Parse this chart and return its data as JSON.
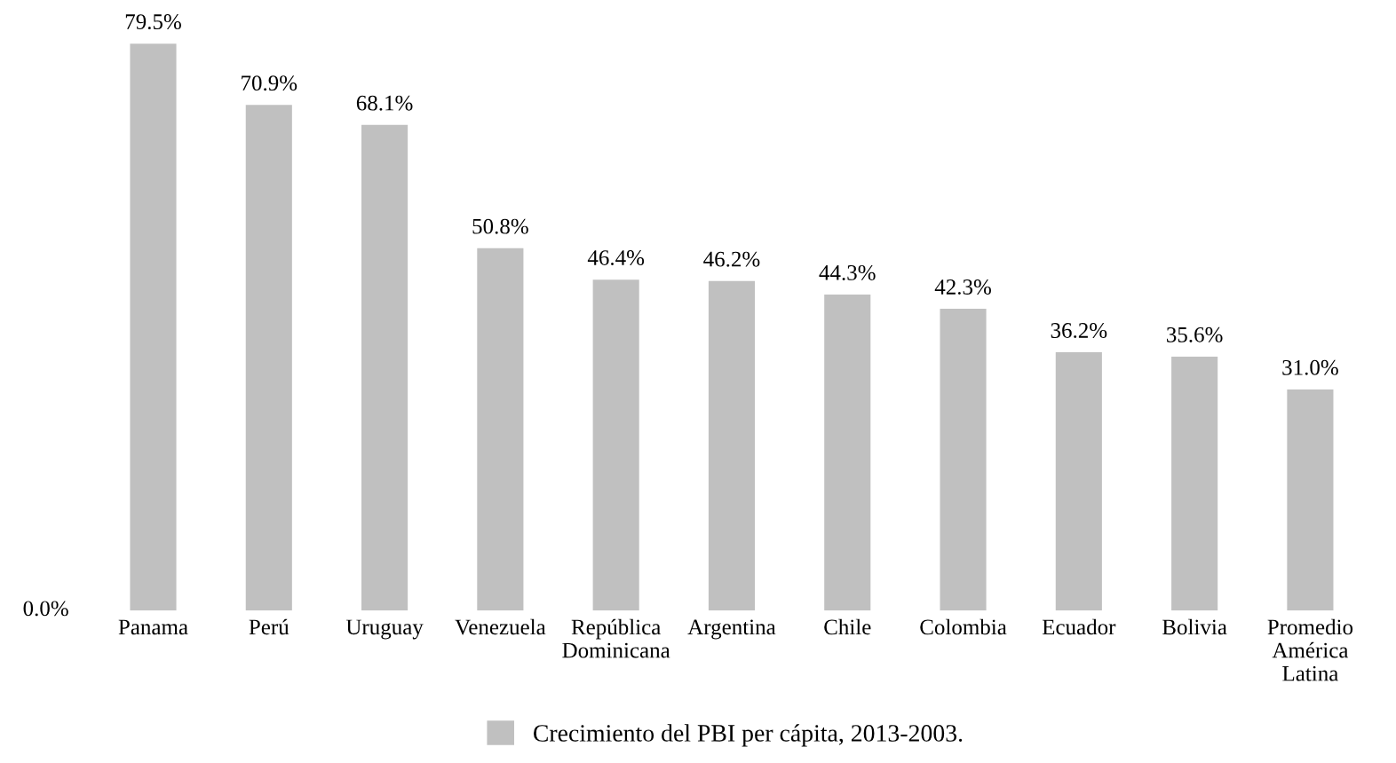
{
  "chart_data": {
    "type": "bar",
    "categories": [
      "Panama",
      "Perú",
      "Uruguay",
      "Venezuela",
      "República\nDominicana",
      "Argentina",
      "Chile",
      "Colombia",
      "Ecuador",
      "Bolivia",
      "Promedio\nAmérica\nLatina"
    ],
    "series": [
      {
        "name": "Crecimiento del PBI per cápita, 2013-2003.",
        "color": "#c0c0c0",
        "values": [
          79.5,
          70.9,
          68.1,
          50.8,
          46.4,
          46.2,
          44.3,
          42.3,
          36.2,
          35.6,
          31.0
        ],
        "value_labels": [
          "79.5%",
          "70.9%",
          "68.1%",
          "50.8%",
          "46.4%",
          "46.2%",
          "44.3%",
          "42.3%",
          "36.2%",
          "35.6%",
          "31.0%"
        ]
      }
    ],
    "annotations": [
      "0.0%"
    ],
    "grid": false,
    "legend": "bottom"
  }
}
